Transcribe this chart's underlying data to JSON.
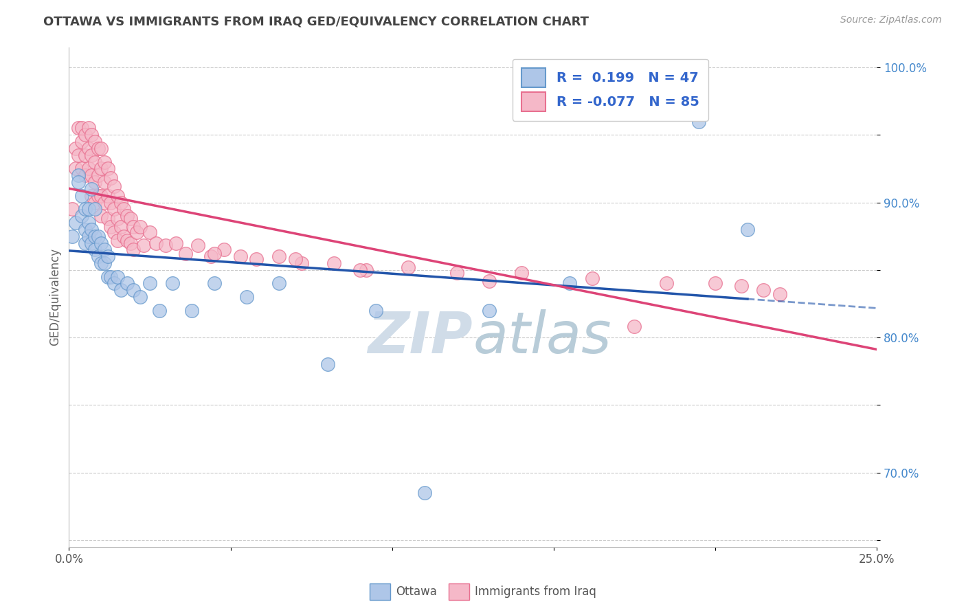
{
  "title": "OTTAWA VS IMMIGRANTS FROM IRAQ GED/EQUIVALENCY CORRELATION CHART",
  "source": "Source: ZipAtlas.com",
  "ylabel": "GED/Equivalency",
  "xlim": [
    0.0,
    0.25
  ],
  "ylim": [
    0.645,
    1.015
  ],
  "xticks": [
    0.0,
    0.05,
    0.1,
    0.15,
    0.2,
    0.25
  ],
  "xtick_labels": [
    "0.0%",
    "",
    "",
    "",
    "",
    "25.0%"
  ],
  "yticks": [
    0.65,
    0.7,
    0.75,
    0.8,
    0.85,
    0.9,
    0.95,
    1.0
  ],
  "ytick_labels": [
    "",
    "70.0%",
    "",
    "80.0%",
    "",
    "90.0%",
    "",
    "100.0%"
  ],
  "grid_color": "#cccccc",
  "bg_color": "#ffffff",
  "ottawa_color": "#aec6e8",
  "iraq_color": "#f5b8c8",
  "ottawa_edge": "#6699cc",
  "iraq_edge": "#e87090",
  "r_ottawa": 0.199,
  "n_ottawa": 47,
  "r_iraq": -0.077,
  "n_iraq": 85,
  "title_color": "#444444",
  "watermark_zip": "ZIP",
  "watermark_atlas": "atlas",
  "watermark_color_zip": "#d0dce8",
  "watermark_color_atlas": "#b8ccd8",
  "ottawa_trend_color": "#2255aa",
  "iraq_trend_color": "#dd4477",
  "ottawa_x": [
    0.001,
    0.002,
    0.003,
    0.003,
    0.004,
    0.004,
    0.005,
    0.005,
    0.005,
    0.006,
    0.006,
    0.006,
    0.007,
    0.007,
    0.007,
    0.008,
    0.008,
    0.008,
    0.009,
    0.009,
    0.01,
    0.01,
    0.011,
    0.011,
    0.012,
    0.012,
    0.013,
    0.014,
    0.015,
    0.016,
    0.018,
    0.02,
    0.022,
    0.025,
    0.028,
    0.032,
    0.038,
    0.045,
    0.055,
    0.065,
    0.08,
    0.095,
    0.11,
    0.13,
    0.155,
    0.195,
    0.21
  ],
  "ottawa_y": [
    0.875,
    0.885,
    0.92,
    0.915,
    0.89,
    0.905,
    0.87,
    0.88,
    0.895,
    0.875,
    0.885,
    0.895,
    0.87,
    0.88,
    0.91,
    0.865,
    0.875,
    0.895,
    0.86,
    0.875,
    0.855,
    0.87,
    0.855,
    0.865,
    0.845,
    0.86,
    0.845,
    0.84,
    0.845,
    0.835,
    0.84,
    0.835,
    0.83,
    0.84,
    0.82,
    0.84,
    0.82,
    0.84,
    0.83,
    0.84,
    0.78,
    0.82,
    0.685,
    0.82,
    0.84,
    0.96,
    0.88
  ],
  "iraq_x": [
    0.001,
    0.002,
    0.002,
    0.003,
    0.003,
    0.004,
    0.004,
    0.004,
    0.005,
    0.005,
    0.005,
    0.006,
    0.006,
    0.006,
    0.007,
    0.007,
    0.007,
    0.007,
    0.008,
    0.008,
    0.008,
    0.008,
    0.009,
    0.009,
    0.009,
    0.01,
    0.01,
    0.01,
    0.01,
    0.011,
    0.011,
    0.011,
    0.012,
    0.012,
    0.012,
    0.013,
    0.013,
    0.013,
    0.014,
    0.014,
    0.014,
    0.015,
    0.015,
    0.015,
    0.016,
    0.016,
    0.017,
    0.017,
    0.018,
    0.018,
    0.019,
    0.019,
    0.02,
    0.02,
    0.021,
    0.022,
    0.023,
    0.025,
    0.027,
    0.03,
    0.033,
    0.036,
    0.04,
    0.044,
    0.048,
    0.053,
    0.058,
    0.065,
    0.072,
    0.082,
    0.092,
    0.105,
    0.12,
    0.14,
    0.162,
    0.185,
    0.2,
    0.208,
    0.215,
    0.22,
    0.045,
    0.07,
    0.09,
    0.13,
    0.175
  ],
  "iraq_y": [
    0.895,
    0.94,
    0.925,
    0.955,
    0.935,
    0.945,
    0.955,
    0.925,
    0.95,
    0.935,
    0.92,
    0.94,
    0.955,
    0.925,
    0.95,
    0.935,
    0.92,
    0.905,
    0.945,
    0.93,
    0.915,
    0.9,
    0.94,
    0.92,
    0.905,
    0.94,
    0.925,
    0.905,
    0.89,
    0.93,
    0.915,
    0.9,
    0.925,
    0.905,
    0.888,
    0.918,
    0.9,
    0.882,
    0.912,
    0.895,
    0.878,
    0.905,
    0.888,
    0.872,
    0.9,
    0.882,
    0.895,
    0.875,
    0.89,
    0.872,
    0.888,
    0.87,
    0.882,
    0.865,
    0.878,
    0.882,
    0.868,
    0.878,
    0.87,
    0.868,
    0.87,
    0.862,
    0.868,
    0.86,
    0.865,
    0.86,
    0.858,
    0.86,
    0.855,
    0.855,
    0.85,
    0.852,
    0.848,
    0.848,
    0.844,
    0.84,
    0.84,
    0.838,
    0.835,
    0.832,
    0.862,
    0.858,
    0.85,
    0.842,
    0.808
  ]
}
